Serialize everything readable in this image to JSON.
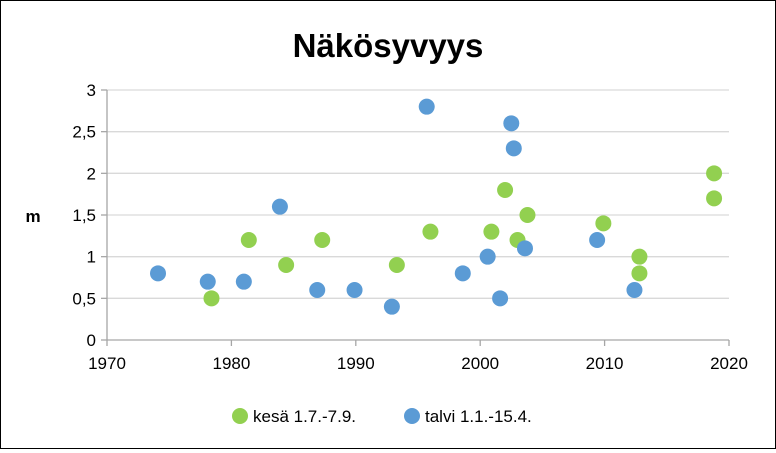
{
  "chart_data": {
    "type": "scatter",
    "title": "Näkösyvyys",
    "xlabel": "",
    "ylabel": "m",
    "xlim": [
      1970,
      2020
    ],
    "ylim": [
      0,
      3
    ],
    "xticks": [
      "1970",
      "1980",
      "1990",
      "2000",
      "2010",
      "2020"
    ],
    "yticks": [
      "0",
      "0,5",
      "1",
      "1,5",
      "2",
      "2,5",
      "3"
    ],
    "grid": "horizontal",
    "legend": "bottom",
    "series": [
      {
        "name": "kesä 1.7.-7.9.",
        "color": "#92d050",
        "points": [
          {
            "x": 1978.4,
            "y": 0.5
          },
          {
            "x": 1981.4,
            "y": 1.2
          },
          {
            "x": 1984.4,
            "y": 0.9
          },
          {
            "x": 1987.3,
            "y": 1.2
          },
          {
            "x": 1993.3,
            "y": 0.9
          },
          {
            "x": 1996.0,
            "y": 1.3
          },
          {
            "x": 2000.9,
            "y": 1.3
          },
          {
            "x": 2002.0,
            "y": 1.8
          },
          {
            "x": 2003.0,
            "y": 1.2
          },
          {
            "x": 2003.8,
            "y": 1.5
          },
          {
            "x": 2009.9,
            "y": 1.4
          },
          {
            "x": 2012.8,
            "y": 1.0
          },
          {
            "x": 2012.8,
            "y": 0.8
          },
          {
            "x": 2018.8,
            "y": 2.0
          },
          {
            "x": 2018.8,
            "y": 1.7
          }
        ]
      },
      {
        "name": "talvi 1.1.-15.4.",
        "color": "#5b9bd5",
        "points": [
          {
            "x": 1974.1,
            "y": 0.8
          },
          {
            "x": 1978.1,
            "y": 0.7
          },
          {
            "x": 1981.0,
            "y": 0.7
          },
          {
            "x": 1983.9,
            "y": 1.6
          },
          {
            "x": 1986.9,
            "y": 0.6
          },
          {
            "x": 1989.9,
            "y": 0.6
          },
          {
            "x": 1992.9,
            "y": 0.4
          },
          {
            "x": 1995.7,
            "y": 2.8
          },
          {
            "x": 1998.6,
            "y": 0.8
          },
          {
            "x": 2000.6,
            "y": 1.0
          },
          {
            "x": 2001.6,
            "y": 0.5
          },
          {
            "x": 2002.5,
            "y": 2.6
          },
          {
            "x": 2002.7,
            "y": 2.3
          },
          {
            "x": 2003.6,
            "y": 1.1
          },
          {
            "x": 2009.4,
            "y": 1.2
          },
          {
            "x": 2012.4,
            "y": 0.6
          }
        ]
      }
    ]
  }
}
